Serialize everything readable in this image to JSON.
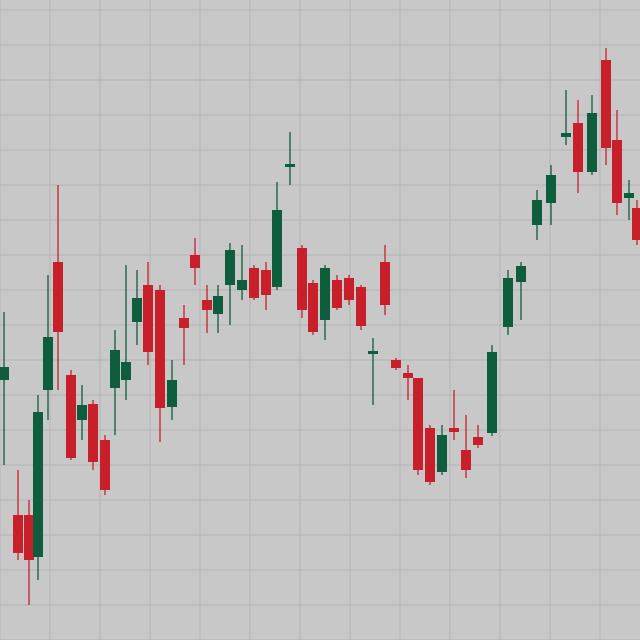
{
  "chart_data": {
    "type": "candlestick",
    "xlim": [
      0,
      640
    ],
    "ylim": [
      0,
      640
    ],
    "xticks": [
      0,
      50,
      100,
      150,
      200,
      250,
      300,
      350,
      400,
      450,
      500,
      550,
      600
    ],
    "yticks": [
      0,
      35,
      70,
      105,
      140,
      175,
      210,
      245,
      280,
      315,
      350,
      385,
      420,
      455,
      490,
      525,
      560,
      595,
      630
    ],
    "grid": true,
    "up_color": "#0e5e3d",
    "down_color": "#c8202a",
    "x": [
      4,
      18,
      29,
      38,
      48,
      58,
      71,
      82,
      93,
      105,
      115,
      126,
      137,
      148,
      160,
      172,
      184,
      195,
      207,
      218,
      230,
      242,
      254,
      266,
      277,
      290,
      302,
      313,
      325,
      337,
      349,
      361,
      373,
      385,
      396,
      408,
      418,
      430,
      442,
      454,
      466,
      478,
      492,
      508,
      521,
      537,
      551,
      566,
      578,
      592,
      606,
      617,
      629,
      637
    ],
    "open": [
      260,
      125,
      125,
      83,
      250,
      378,
      265,
      220,
      236,
      200,
      252,
      260,
      318,
      355,
      350,
      233,
      322,
      385,
      340,
      326,
      355,
      350,
      372,
      370,
      353,
      473,
      392,
      357,
      320,
      360,
      362,
      353,
      286,
      378,
      280,
      267,
      262,
      212,
      168,
      212,
      190,
      203,
      207,
      313,
      358,
      415,
      437,
      503,
      517,
      468,
      580,
      500,
      442,
      432
    ],
    "high": [
      328,
      170,
      140,
      245,
      365,
      455,
      270,
      255,
      240,
      205,
      310,
      375,
      370,
      378,
      355,
      280,
      335,
      402,
      355,
      355,
      397,
      395,
      375,
      378,
      458,
      508,
      395,
      360,
      375,
      365,
      365,
      355,
      302,
      395,
      282,
      275,
      262,
      215,
      215,
      250,
      225,
      215,
      295,
      370,
      378,
      450,
      475,
      550,
      540,
      545,
      592,
      530,
      460,
      440
    ],
    "low": [
      175,
      80,
      35,
      60,
      220,
      250,
      180,
      200,
      170,
      145,
      205,
      240,
      295,
      275,
      198,
      220,
      275,
      355,
      307,
      307,
      315,
      340,
      340,
      330,
      350,
      455,
      322,
      305,
      300,
      330,
      335,
      310,
      235,
      325,
      270,
      240,
      165,
      155,
      165,
      200,
      162,
      192,
      204,
      305,
      320,
      400,
      415,
      495,
      447,
      465,
      475,
      425,
      420,
      395
    ],
    "close": [
      273,
      87,
      80,
      228,
      303,
      308,
      182,
      235,
      178,
      150,
      290,
      278,
      342,
      288,
      232,
      260,
      312,
      372,
      330,
      344,
      390,
      360,
      342,
      345,
      430,
      476,
      330,
      308,
      372,
      332,
      340,
      314,
      289,
      335,
      272,
      262,
      170,
      158,
      205,
      208,
      170,
      195,
      288,
      362,
      374,
      440,
      465,
      507,
      468,
      527,
      492,
      437,
      447,
      400
    ]
  }
}
